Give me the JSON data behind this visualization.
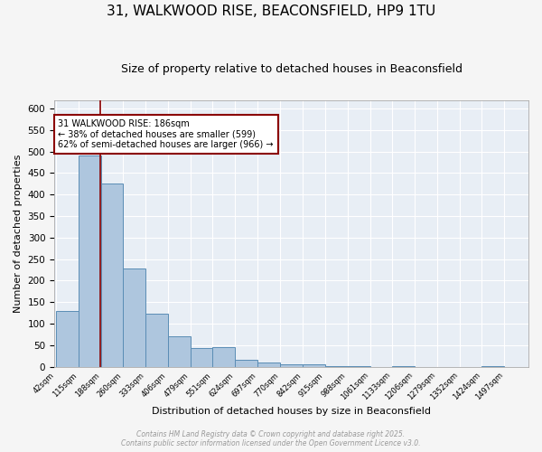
{
  "title": "31, WALKWOOD RISE, BEACONSFIELD, HP9 1TU",
  "subtitle": "Size of property relative to detached houses in Beaconsfield",
  "xlabel": "Distribution of detached houses by size in Beaconsfield",
  "ylabel": "Number of detached properties",
  "bar_values": [
    130,
    490,
    425,
    228,
    124,
    70,
    43,
    45,
    15,
    10,
    5,
    5,
    2,
    2,
    0,
    2,
    0,
    0,
    0,
    2,
    0
  ],
  "bin_edges": [
    42,
    115,
    188,
    260,
    333,
    406,
    479,
    551,
    624,
    697,
    770,
    842,
    915,
    988,
    1061,
    1133,
    1206,
    1279,
    1352,
    1424,
    1497,
    1570
  ],
  "tick_labels": [
    "42sqm",
    "115sqm",
    "188sqm",
    "260sqm",
    "333sqm",
    "406sqm",
    "479sqm",
    "551sqm",
    "624sqm",
    "697sqm",
    "770sqm",
    "842sqm",
    "915sqm",
    "988sqm",
    "1061sqm",
    "1133sqm",
    "1206sqm",
    "1279sqm",
    "1352sqm",
    "1424sqm",
    "1497sqm"
  ],
  "bar_color": "#aec6de",
  "bar_edge_color": "#5a8db5",
  "bg_color": "#e8eef5",
  "grid_color": "#ffffff",
  "ref_line_x": 186,
  "ref_line_color": "#8b0000",
  "annotation_text": "31 WALKWOOD RISE: 186sqm\n← 38% of detached houses are smaller (599)\n62% of semi-detached houses are larger (966) →",
  "annotation_box_color": "#8b0000",
  "ylim": [
    0,
    620
  ],
  "yticks": [
    0,
    50,
    100,
    150,
    200,
    250,
    300,
    350,
    400,
    450,
    500,
    550,
    600
  ],
  "footer_line1": "Contains HM Land Registry data © Crown copyright and database right 2025.",
  "footer_line2": "Contains public sector information licensed under the Open Government Licence v3.0.",
  "title_fontsize": 11,
  "subtitle_fontsize": 9,
  "fig_bg_color": "#f5f5f5"
}
